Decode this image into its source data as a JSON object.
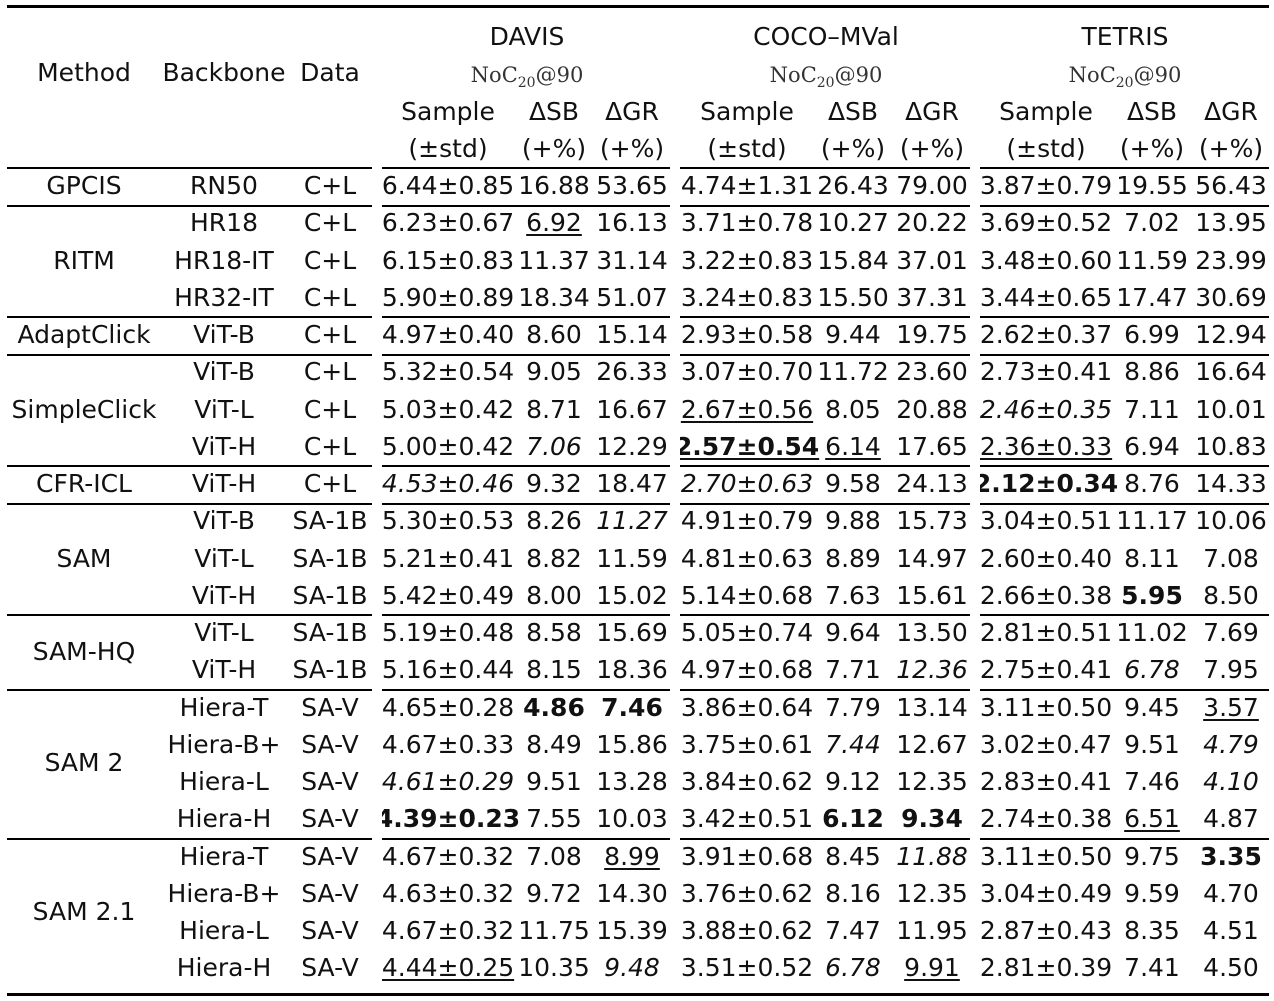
{
  "header": {
    "method": "Method",
    "backbone": "Backbone",
    "data": "Data",
    "datasets": [
      "DAVIS",
      "COCO–MVal",
      "TETRIS"
    ],
    "metric_base": "NoC",
    "metric_sub": "20",
    "metric_tail": "@90",
    "col_sample": "Sample",
    "col_sample_sub": "(±std)",
    "col_sb": "ΔSB",
    "col_gr": "ΔGR",
    "col_pct": "(+%)"
  },
  "groups": [
    {
      "name": "GPCIS",
      "rows": [
        0
      ]
    },
    {
      "name": "RITM",
      "rows": [
        1,
        2,
        3
      ]
    },
    {
      "name": "AdaptClick",
      "rows": [
        4
      ]
    },
    {
      "name": "SimpleClick",
      "rows": [
        5,
        6,
        7
      ]
    },
    {
      "name": "CFR-ICL",
      "rows": [
        8
      ]
    },
    {
      "name": "SAM",
      "rows": [
        9,
        10,
        11
      ]
    },
    {
      "name": "SAM-HQ",
      "rows": [
        12,
        13
      ]
    },
    {
      "name": "SAM 2",
      "rows": [
        14,
        15,
        16,
        17
      ]
    },
    {
      "name": "SAM 2.1",
      "rows": [
        18,
        19,
        20,
        21
      ]
    }
  ],
  "rows": [
    {
      "backbone": "RN50",
      "data": "C+L",
      "cells": [
        [
          "6.44±0.85",
          ""
        ],
        [
          "16.88",
          ""
        ],
        [
          "53.65",
          ""
        ],
        [
          "4.74±1.31",
          ""
        ],
        [
          "26.43",
          ""
        ],
        [
          "79.00",
          ""
        ],
        [
          "3.87±0.79",
          ""
        ],
        [
          "19.55",
          ""
        ],
        [
          "56.43",
          ""
        ]
      ]
    },
    {
      "backbone": "HR18",
      "data": "C+L",
      "cells": [
        [
          "6.23±0.67",
          ""
        ],
        [
          "6.92",
          "u"
        ],
        [
          "16.13",
          ""
        ],
        [
          "3.71±0.78",
          ""
        ],
        [
          "10.27",
          ""
        ],
        [
          "20.22",
          ""
        ],
        [
          "3.69±0.52",
          ""
        ],
        [
          "7.02",
          ""
        ],
        [
          "13.95",
          ""
        ]
      ]
    },
    {
      "backbone": "HR18-IT",
      "data": "C+L",
      "cells": [
        [
          "6.15±0.83",
          ""
        ],
        [
          "11.37",
          ""
        ],
        [
          "31.14",
          ""
        ],
        [
          "3.22±0.83",
          ""
        ],
        [
          "15.84",
          ""
        ],
        [
          "37.01",
          ""
        ],
        [
          "3.48±0.60",
          ""
        ],
        [
          "11.59",
          ""
        ],
        [
          "23.99",
          ""
        ]
      ]
    },
    {
      "backbone": "HR32-IT",
      "data": "C+L",
      "cells": [
        [
          "5.90±0.89",
          ""
        ],
        [
          "18.34",
          ""
        ],
        [
          "51.07",
          ""
        ],
        [
          "3.24±0.83",
          ""
        ],
        [
          "15.50",
          ""
        ],
        [
          "37.31",
          ""
        ],
        [
          "3.44±0.65",
          ""
        ],
        [
          "17.47",
          ""
        ],
        [
          "30.69",
          ""
        ]
      ]
    },
    {
      "backbone": "ViT-B",
      "data": "C+L",
      "cells": [
        [
          "4.97±0.40",
          ""
        ],
        [
          "8.60",
          ""
        ],
        [
          "15.14",
          ""
        ],
        [
          "2.93±0.58",
          ""
        ],
        [
          "9.44",
          ""
        ],
        [
          "19.75",
          ""
        ],
        [
          "2.62±0.37",
          ""
        ],
        [
          "6.99",
          ""
        ],
        [
          "12.94",
          ""
        ]
      ]
    },
    {
      "backbone": "ViT-B",
      "data": "C+L",
      "cells": [
        [
          "5.32±0.54",
          ""
        ],
        [
          "9.05",
          ""
        ],
        [
          "26.33",
          ""
        ],
        [
          "3.07±0.70",
          ""
        ],
        [
          "11.72",
          ""
        ],
        [
          "23.60",
          ""
        ],
        [
          "2.73±0.41",
          ""
        ],
        [
          "8.86",
          ""
        ],
        [
          "16.64",
          ""
        ]
      ]
    },
    {
      "backbone": "ViT-L",
      "data": "C+L",
      "cells": [
        [
          "5.03±0.42",
          ""
        ],
        [
          "8.71",
          ""
        ],
        [
          "16.67",
          ""
        ],
        [
          "2.67±0.56",
          "u"
        ],
        [
          "8.05",
          ""
        ],
        [
          "20.88",
          ""
        ],
        [
          "2.46±0.35",
          "i"
        ],
        [
          "7.11",
          ""
        ],
        [
          "10.01",
          ""
        ]
      ]
    },
    {
      "backbone": "ViT-H",
      "data": "C+L",
      "cells": [
        [
          "5.00±0.42",
          ""
        ],
        [
          "7.06",
          "i"
        ],
        [
          "12.29",
          ""
        ],
        [
          "2.57±0.54",
          "bu"
        ],
        [
          "6.14",
          "u"
        ],
        [
          "17.65",
          ""
        ],
        [
          "2.36±0.33",
          "u"
        ],
        [
          "6.94",
          ""
        ],
        [
          "10.83",
          ""
        ]
      ]
    },
    {
      "backbone": "ViT-H",
      "data": "C+L",
      "cells": [
        [
          "4.53±0.46",
          "i"
        ],
        [
          "9.32",
          ""
        ],
        [
          "18.47",
          ""
        ],
        [
          "2.70±0.63",
          "i"
        ],
        [
          "9.58",
          ""
        ],
        [
          "24.13",
          ""
        ],
        [
          "2.12±0.34",
          "b"
        ],
        [
          "8.76",
          ""
        ],
        [
          "14.33",
          ""
        ]
      ]
    },
    {
      "backbone": "ViT-B",
      "data": "SA-1B",
      "cells": [
        [
          "5.30±0.53",
          ""
        ],
        [
          "8.26",
          ""
        ],
        [
          "11.27",
          "i"
        ],
        [
          "4.91±0.79",
          ""
        ],
        [
          "9.88",
          ""
        ],
        [
          "15.73",
          ""
        ],
        [
          "3.04±0.51",
          ""
        ],
        [
          "11.17",
          ""
        ],
        [
          "10.06",
          ""
        ]
      ]
    },
    {
      "backbone": "ViT-L",
      "data": "SA-1B",
      "cells": [
        [
          "5.21±0.41",
          ""
        ],
        [
          "8.82",
          ""
        ],
        [
          "11.59",
          ""
        ],
        [
          "4.81±0.63",
          ""
        ],
        [
          "8.89",
          ""
        ],
        [
          "14.97",
          ""
        ],
        [
          "2.60±0.40",
          ""
        ],
        [
          "8.11",
          ""
        ],
        [
          "7.08",
          ""
        ]
      ]
    },
    {
      "backbone": "ViT-H",
      "data": "SA-1B",
      "cells": [
        [
          "5.42±0.49",
          ""
        ],
        [
          "8.00",
          ""
        ],
        [
          "15.02",
          ""
        ],
        [
          "5.14±0.68",
          ""
        ],
        [
          "7.63",
          ""
        ],
        [
          "15.61",
          ""
        ],
        [
          "2.66±0.38",
          ""
        ],
        [
          "5.95",
          "b"
        ],
        [
          "8.50",
          ""
        ]
      ]
    },
    {
      "backbone": "ViT-L",
      "data": "SA-1B",
      "cells": [
        [
          "5.19±0.48",
          ""
        ],
        [
          "8.58",
          ""
        ],
        [
          "15.69",
          ""
        ],
        [
          "5.05±0.74",
          ""
        ],
        [
          "9.64",
          ""
        ],
        [
          "13.50",
          ""
        ],
        [
          "2.81±0.51",
          ""
        ],
        [
          "11.02",
          ""
        ],
        [
          "7.69",
          ""
        ]
      ]
    },
    {
      "backbone": "ViT-H",
      "data": "SA-1B",
      "cells": [
        [
          "5.16±0.44",
          ""
        ],
        [
          "8.15",
          ""
        ],
        [
          "18.36",
          ""
        ],
        [
          "4.97±0.68",
          ""
        ],
        [
          "7.71",
          ""
        ],
        [
          "12.36",
          "i"
        ],
        [
          "2.75±0.41",
          ""
        ],
        [
          "6.78",
          "i"
        ],
        [
          "7.95",
          ""
        ]
      ]
    },
    {
      "backbone": "Hiera-T",
      "data": "SA-V",
      "cells": [
        [
          "4.65±0.28",
          ""
        ],
        [
          "4.86",
          "b"
        ],
        [
          "7.46",
          "b"
        ],
        [
          "3.86±0.64",
          ""
        ],
        [
          "7.79",
          ""
        ],
        [
          "13.14",
          ""
        ],
        [
          "3.11±0.50",
          ""
        ],
        [
          "9.45",
          ""
        ],
        [
          "3.57",
          "u"
        ]
      ]
    },
    {
      "backbone": "Hiera-B+",
      "data": "SA-V",
      "cells": [
        [
          "4.67±0.33",
          ""
        ],
        [
          "8.49",
          ""
        ],
        [
          "15.86",
          ""
        ],
        [
          "3.75±0.61",
          ""
        ],
        [
          "7.44",
          "i"
        ],
        [
          "12.67",
          ""
        ],
        [
          "3.02±0.47",
          ""
        ],
        [
          "9.51",
          ""
        ],
        [
          "4.79",
          "i"
        ]
      ]
    },
    {
      "backbone": "Hiera-L",
      "data": "SA-V",
      "cells": [
        [
          "4.61±0.29",
          "i"
        ],
        [
          "9.51",
          ""
        ],
        [
          "13.28",
          ""
        ],
        [
          "3.84±0.62",
          ""
        ],
        [
          "9.12",
          ""
        ],
        [
          "12.35",
          ""
        ],
        [
          "2.83±0.41",
          ""
        ],
        [
          "7.46",
          ""
        ],
        [
          "4.10",
          "i"
        ]
      ]
    },
    {
      "backbone": "Hiera-H",
      "data": "SA-V",
      "cells": [
        [
          "4.39±0.23",
          "b"
        ],
        [
          "7.55",
          ""
        ],
        [
          "10.03",
          ""
        ],
        [
          "3.42±0.51",
          ""
        ],
        [
          "6.12",
          "b"
        ],
        [
          "9.34",
          "b"
        ],
        [
          "2.74±0.38",
          ""
        ],
        [
          "6.51",
          "u"
        ],
        [
          "4.87",
          ""
        ]
      ]
    },
    {
      "backbone": "Hiera-T",
      "data": "SA-V",
      "cells": [
        [
          "4.67±0.32",
          ""
        ],
        [
          "7.08",
          ""
        ],
        [
          "8.99",
          "u"
        ],
        [
          "3.91±0.68",
          ""
        ],
        [
          "8.45",
          ""
        ],
        [
          "11.88",
          "i"
        ],
        [
          "3.11±0.50",
          ""
        ],
        [
          "9.75",
          ""
        ],
        [
          "3.35",
          "b"
        ]
      ]
    },
    {
      "backbone": "Hiera-B+",
      "data": "SA-V",
      "cells": [
        [
          "4.63±0.32",
          ""
        ],
        [
          "9.72",
          ""
        ],
        [
          "14.30",
          ""
        ],
        [
          "3.76±0.62",
          ""
        ],
        [
          "8.16",
          ""
        ],
        [
          "12.35",
          ""
        ],
        [
          "3.04±0.49",
          ""
        ],
        [
          "9.59",
          ""
        ],
        [
          "4.70",
          ""
        ]
      ]
    },
    {
      "backbone": "Hiera-L",
      "data": "SA-V",
      "cells": [
        [
          "4.67±0.32",
          ""
        ],
        [
          "11.75",
          ""
        ],
        [
          "15.39",
          ""
        ],
        [
          "3.88±0.62",
          ""
        ],
        [
          "7.47",
          ""
        ],
        [
          "11.95",
          ""
        ],
        [
          "2.87±0.43",
          ""
        ],
        [
          "8.35",
          ""
        ],
        [
          "4.51",
          ""
        ]
      ]
    },
    {
      "backbone": "Hiera-H",
      "data": "SA-V",
      "cells": [
        [
          "4.44±0.25",
          "u"
        ],
        [
          "10.35",
          ""
        ],
        [
          "9.48",
          "i"
        ],
        [
          "3.51±0.52",
          ""
        ],
        [
          "6.78",
          "i"
        ],
        [
          "9.91",
          "u"
        ],
        [
          "2.81±0.39",
          ""
        ],
        [
          "7.41",
          ""
        ],
        [
          "4.50",
          ""
        ]
      ]
    }
  ]
}
